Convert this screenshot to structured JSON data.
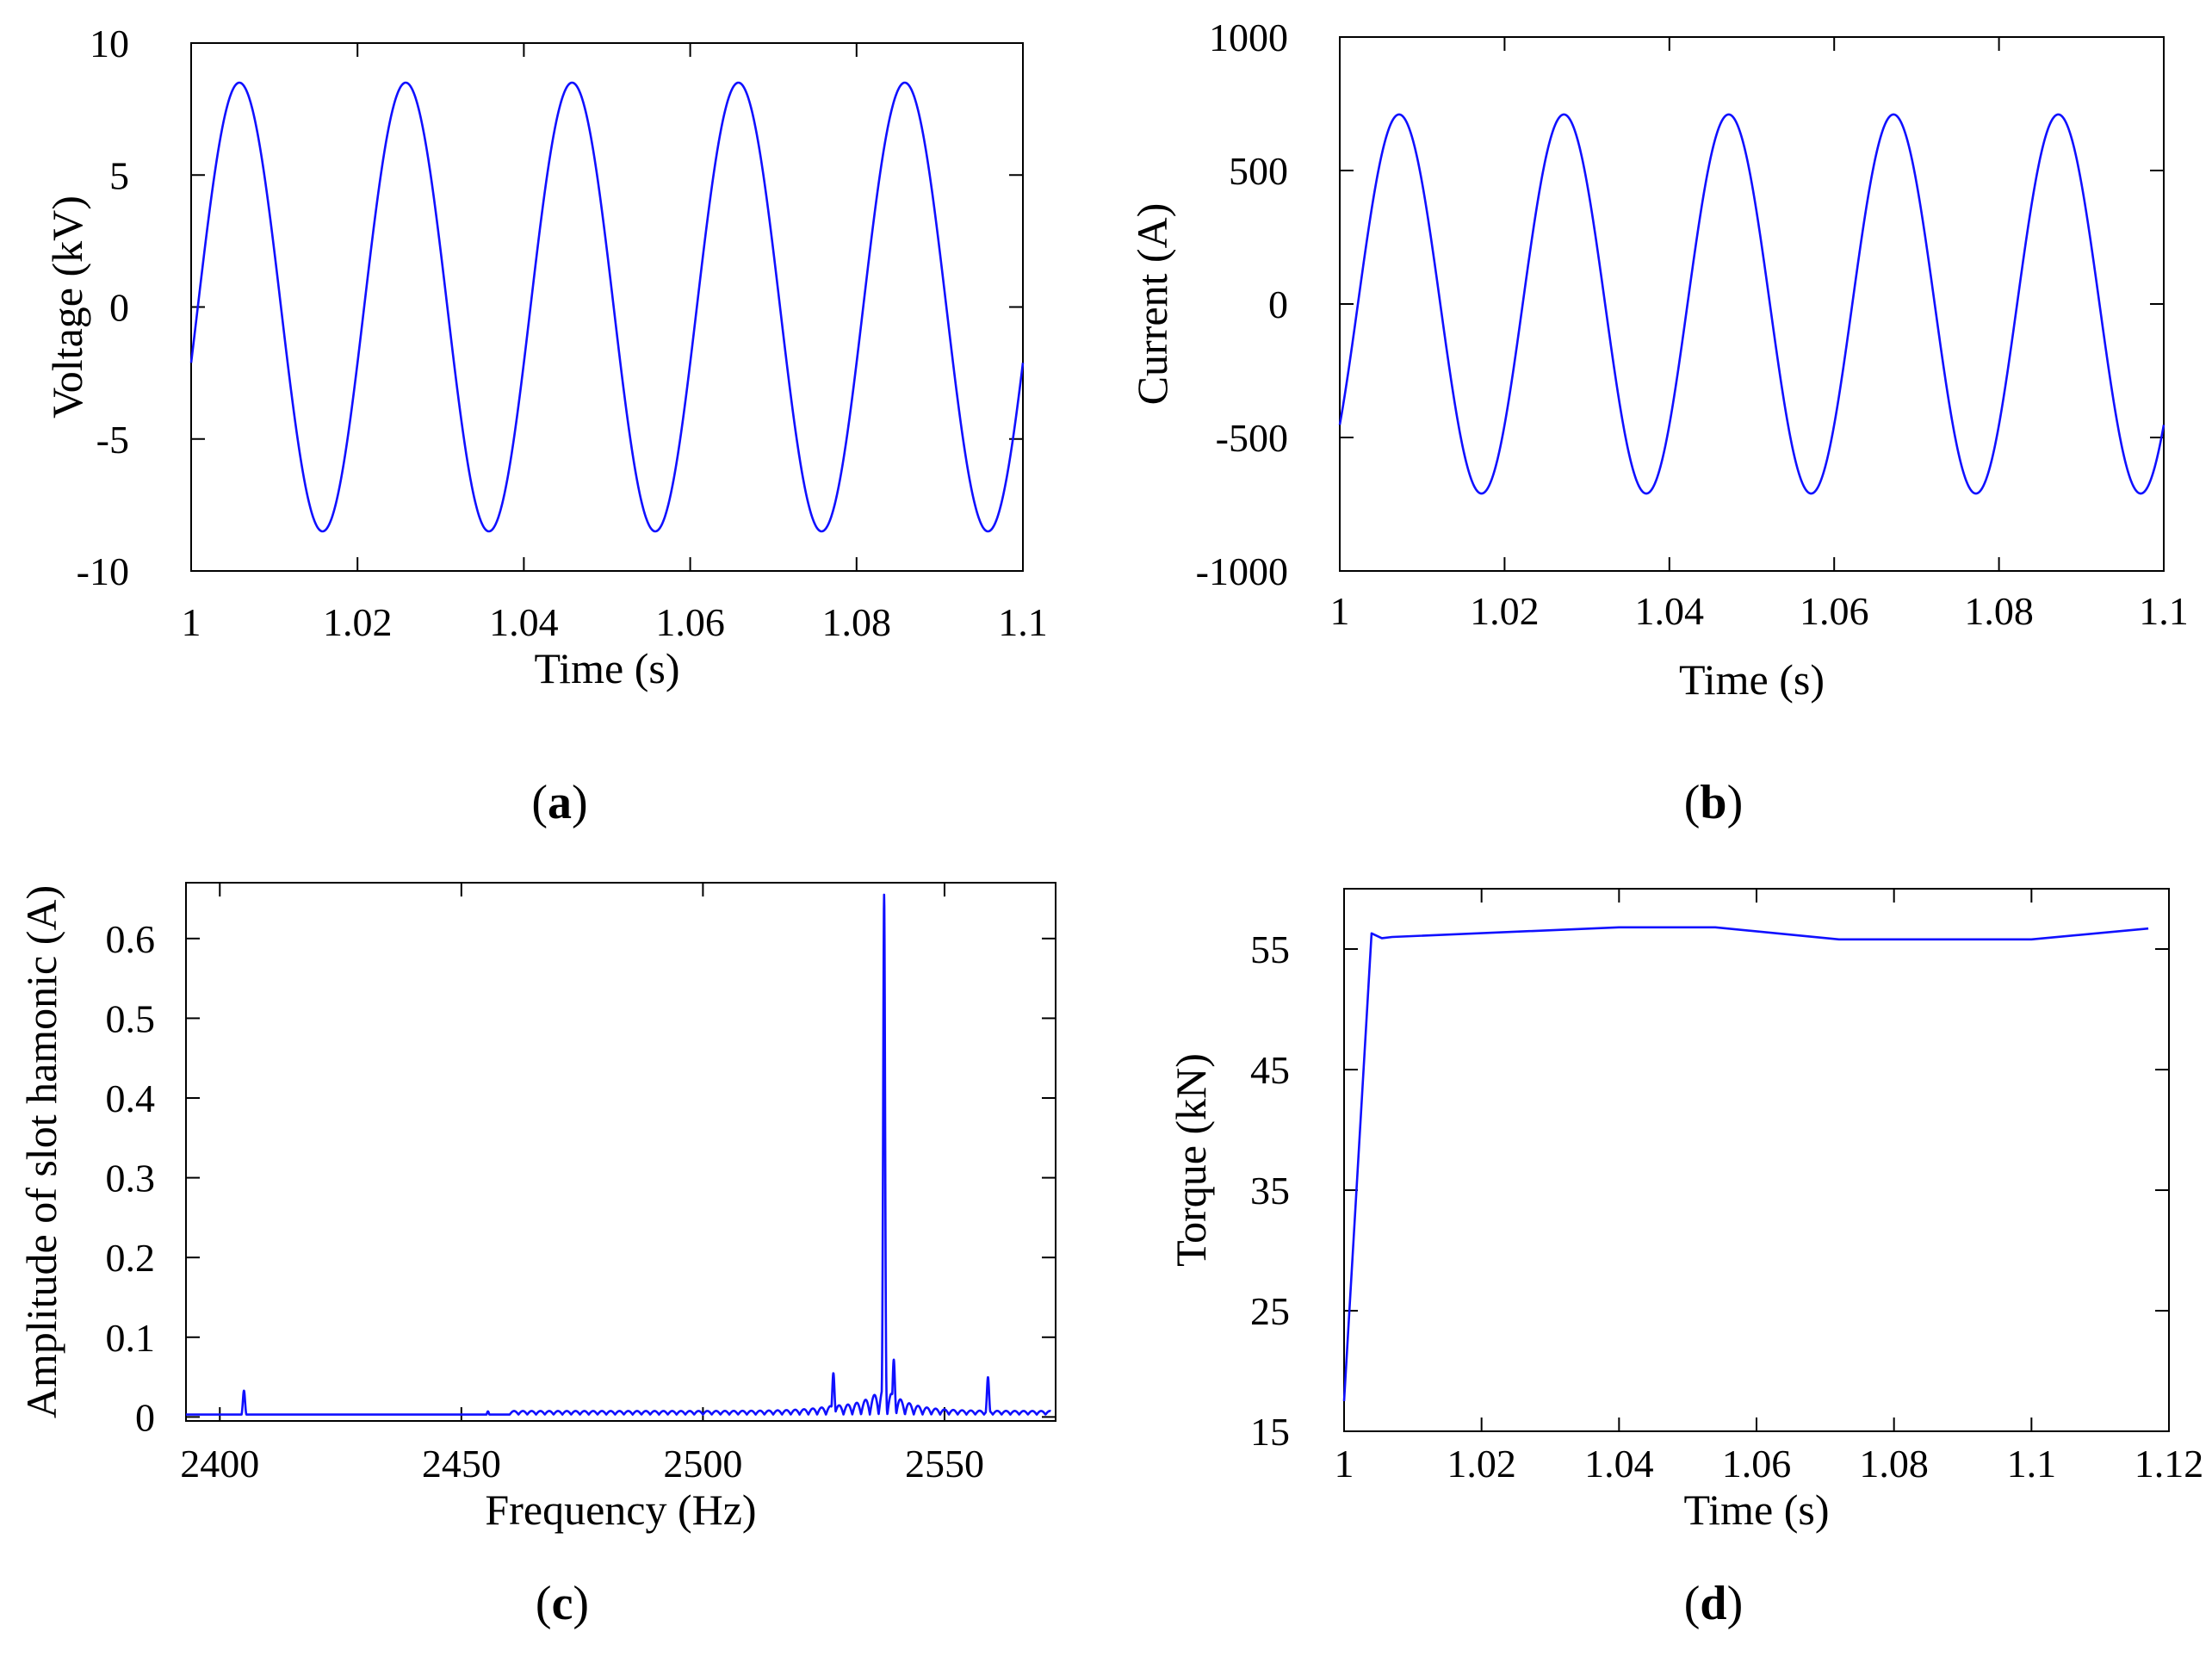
{
  "figure": {
    "colors": {
      "series": "#1010ff",
      "axis": "#000000"
    }
  },
  "chart_data": [
    {
      "panel": "a",
      "caption": "(a)",
      "caption_letter": "a",
      "type": "line",
      "title": "",
      "xlabel": "Time (s)",
      "ylabel": "Voltage (kV)",
      "xlim": [
        1,
        1.1
      ],
      "ylim": [
        -10,
        10
      ],
      "x_ticks": [
        1,
        1.02,
        1.04,
        1.06,
        1.08,
        1.1
      ],
      "x_tick_labels": [
        "1",
        "1.02",
        "1.04",
        "1.06",
        "1.08",
        "1.1"
      ],
      "y_ticks": [
        -10,
        -5,
        0,
        5,
        10
      ],
      "y_tick_labels": [
        "-10",
        "-5",
        "0",
        "5",
        "10"
      ],
      "grid": false,
      "series": [
        {
          "name": "Voltage",
          "shape": "sinusoid",
          "amplitude": 8.5,
          "frequency_hz": 50,
          "x_at_peak": 1.0058,
          "x_start": 1,
          "x_end": 1.1
        }
      ]
    },
    {
      "panel": "b",
      "caption": "(b)",
      "caption_letter": "b",
      "type": "line",
      "title": "",
      "xlabel": "Time (s)",
      "ylabel": "Current (A)",
      "xlim": [
        1,
        1.1
      ],
      "ylim": [
        -1000,
        1000
      ],
      "x_ticks": [
        1,
        1.02,
        1.04,
        1.06,
        1.08,
        1.1
      ],
      "x_tick_labels": [
        "1",
        "1.02",
        "1.04",
        "1.06",
        "1.08",
        "1.1"
      ],
      "y_ticks": [
        -1000,
        -500,
        0,
        500,
        1000
      ],
      "y_tick_labels": [
        "-1000",
        "-500",
        "0",
        "500",
        "1000"
      ],
      "grid": false,
      "series": [
        {
          "name": "Current",
          "shape": "sinusoid",
          "amplitude": 710,
          "frequency_hz": 50,
          "x_at_peak": 1.0072,
          "x_start": 1,
          "x_end": 1.1
        }
      ]
    },
    {
      "panel": "c",
      "caption": "(c)",
      "caption_letter": "c",
      "type": "line",
      "title": "",
      "xlabel": "Frequency (Hz)",
      "ylabel": "Amplitude of slot hamonic (A)",
      "xlim": [
        2393,
        2573
      ],
      "ylim": [
        -0.005,
        0.67
      ],
      "x_ticks": [
        2400,
        2450,
        2500,
        2550
      ],
      "x_tick_labels": [
        "2400",
        "2450",
        "2500",
        "2550"
      ],
      "y_ticks": [
        0,
        0.1,
        0.2,
        0.3,
        0.4,
        0.5,
        0.6
      ],
      "y_tick_labels": [
        "0",
        "0.1",
        "0.2",
        "0.3",
        "0.4",
        "0.5",
        "0.6"
      ],
      "grid": false,
      "series": [
        {
          "name": "Slot harmonic spectrum",
          "shape": "spectrum",
          "baseline": 0.003,
          "peaks": [
            {
              "x": 2405,
              "y": 0.033
            },
            {
              "x": 2455.5,
              "y": 0.007
            },
            {
              "x": 2527,
              "y": 0.055
            },
            {
              "x": 2537.5,
              "y": 0.655
            },
            {
              "x": 2539.5,
              "y": 0.072
            },
            {
              "x": 2559,
              "y": 0.05
            }
          ],
          "ripple_region": [
            2460,
            2572
          ],
          "ripple_center": 2537.5
        }
      ]
    },
    {
      "panel": "d",
      "caption": "(d)",
      "caption_letter": "d",
      "type": "line",
      "title": "",
      "xlabel": "Time (s)",
      "ylabel": "Torque (kN)",
      "xlim": [
        1,
        1.12
      ],
      "ylim": [
        15,
        60
      ],
      "x_ticks": [
        1,
        1.02,
        1.04,
        1.06,
        1.08,
        1.1,
        1.12
      ],
      "x_tick_labels": [
        "1",
        "1.02",
        "1.04",
        "1.06",
        "1.08",
        "1.1",
        "1.12"
      ],
      "y_ticks": [
        15,
        25,
        35,
        45,
        55
      ],
      "y_tick_labels": [
        "15",
        "25",
        "35",
        "45",
        "55"
      ],
      "grid": false,
      "series": [
        {
          "name": "Torque",
          "shape": "polyline",
          "x": [
            1.0,
            1.004,
            1.0055,
            1.007,
            1.04,
            1.054,
            1.072,
            1.1,
            1.117
          ],
          "y": [
            17.5,
            56.3,
            55.9,
            56.0,
            56.8,
            56.8,
            55.8,
            55.8,
            56.7
          ]
        }
      ]
    }
  ]
}
